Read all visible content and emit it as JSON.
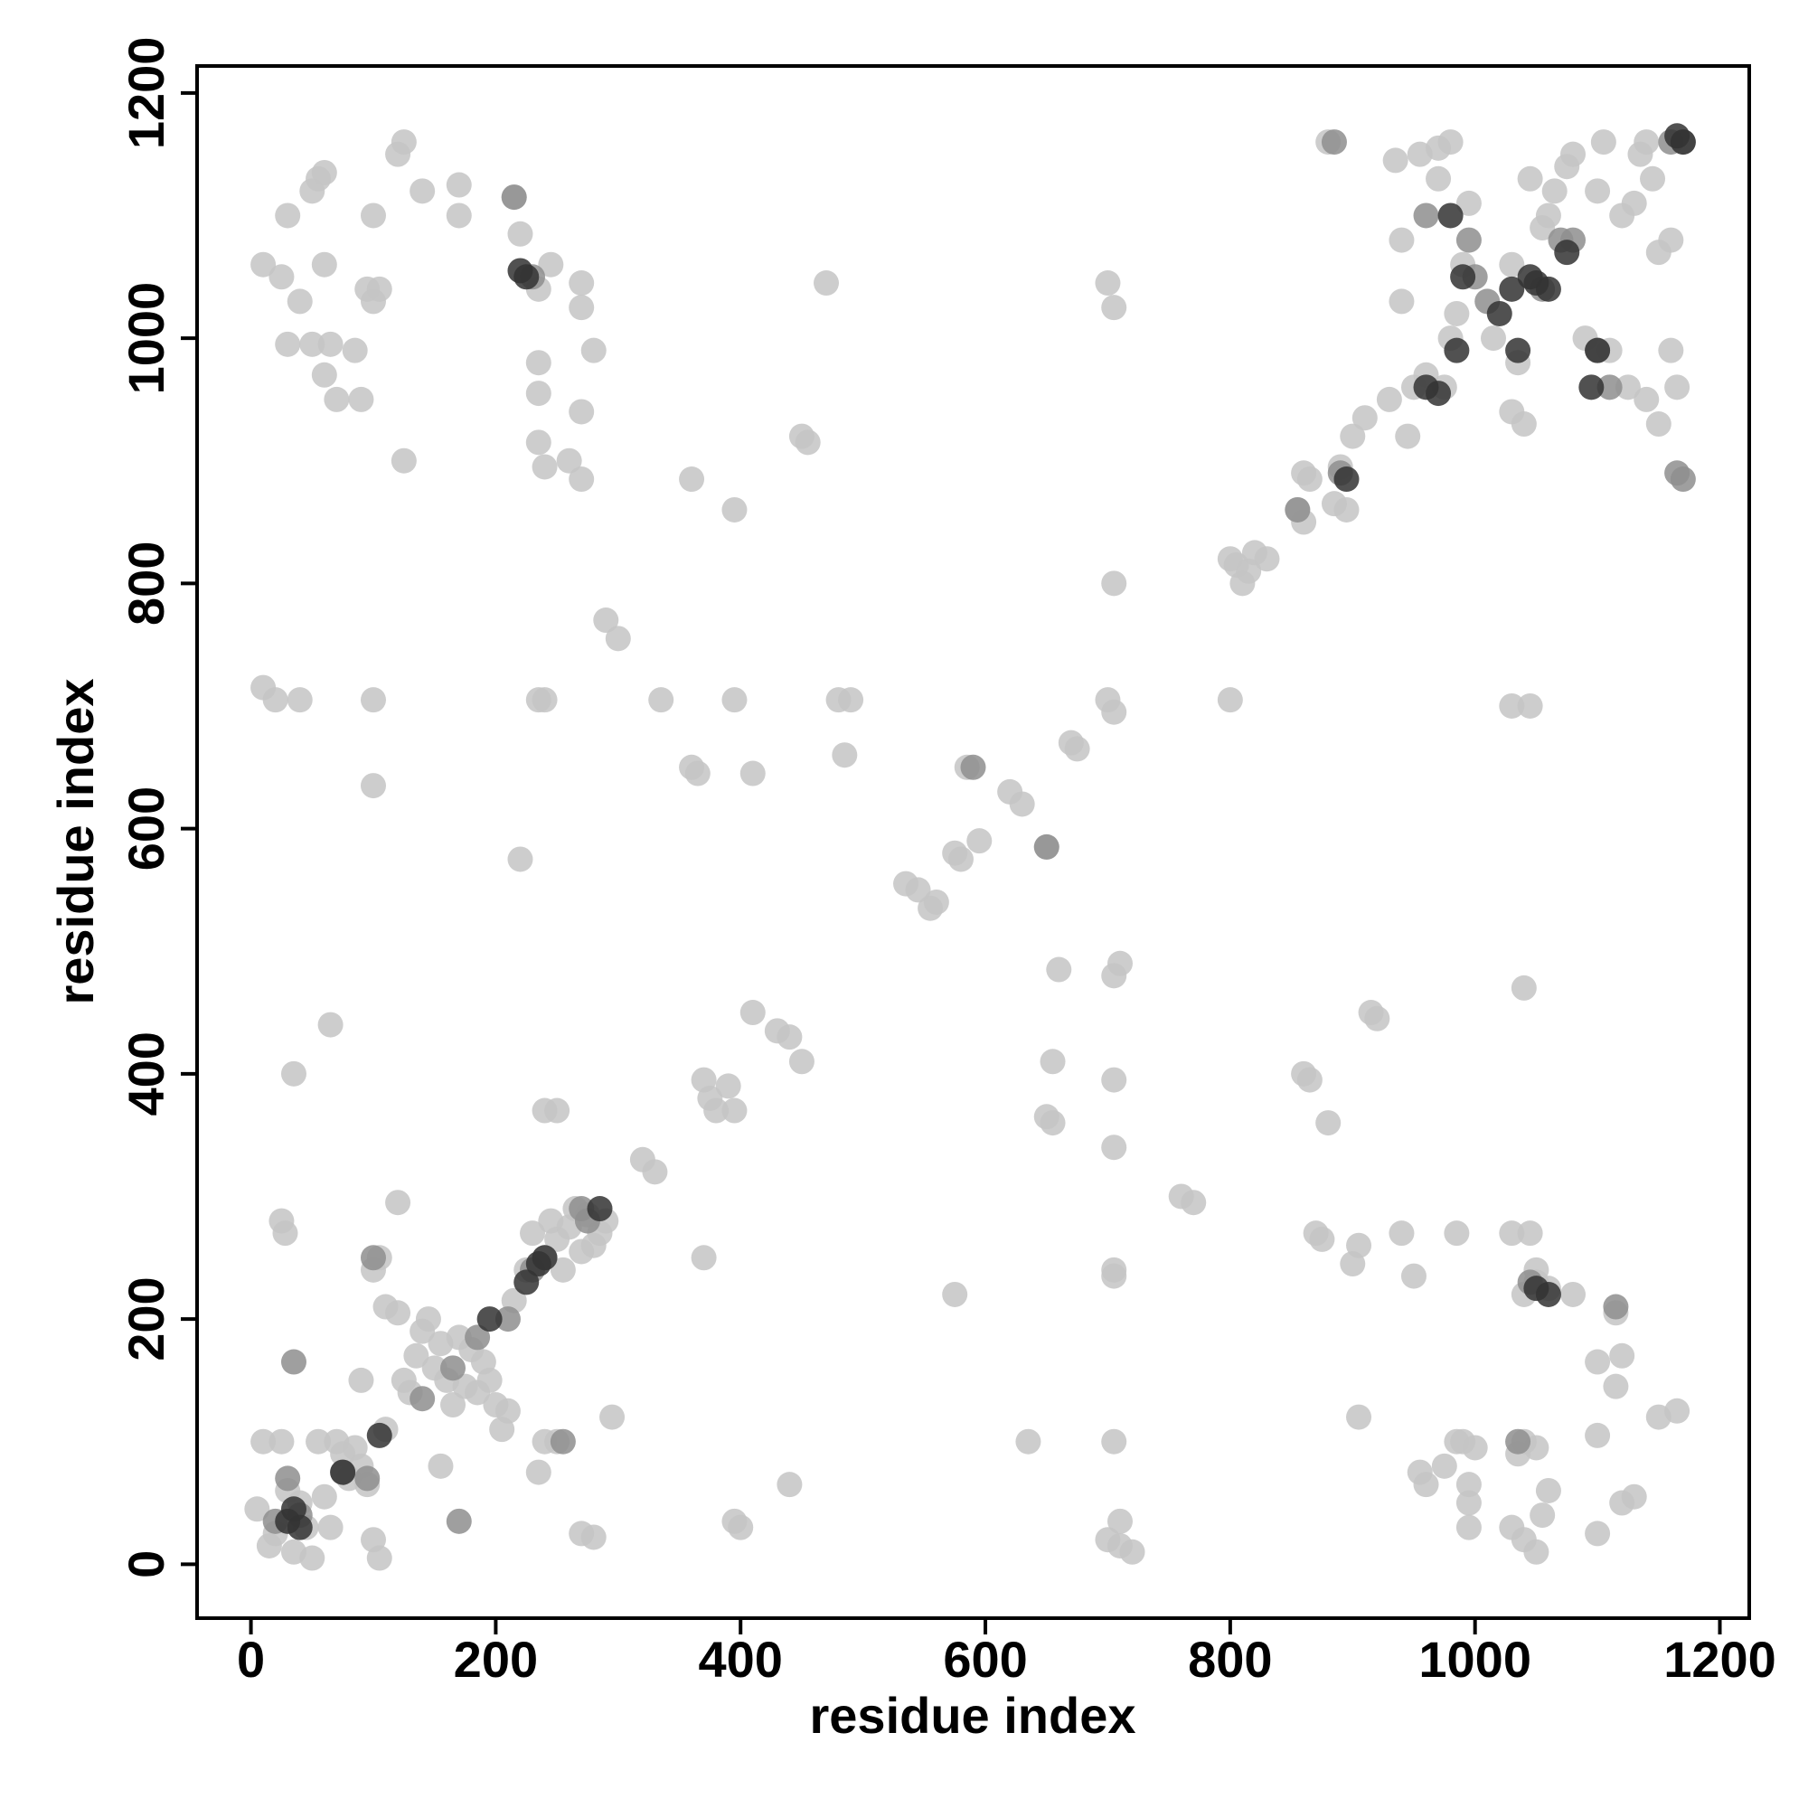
{
  "chart_data": {
    "type": "scatter",
    "x_label": "residue index",
    "y_label": "residue index",
    "xlim": [
      -44,
      1224
    ],
    "ylim": [
      -44,
      1222
    ],
    "xticks": [
      0,
      200,
      400,
      600,
      800,
      1000,
      1200
    ],
    "yticks": [
      0,
      200,
      400,
      600,
      800,
      1000,
      1200
    ],
    "series": [
      {
        "color": "#c4c4c4",
        "x": [
          5,
          10,
          15,
          20,
          25,
          30,
          35,
          40,
          45,
          50,
          55,
          60,
          65,
          70,
          75,
          80,
          85,
          90,
          95,
          100,
          105,
          110,
          100,
          105,
          110,
          120,
          125,
          130,
          135,
          140,
          145,
          150,
          155,
          160,
          165,
          170,
          175,
          180,
          185,
          190,
          195,
          200,
          205,
          210,
          215,
          225,
          230,
          240,
          245,
          250,
          255,
          260,
          265,
          270,
          275,
          280,
          285,
          290,
          120,
          90,
          25,
          28,
          240,
          250,
          235,
          270,
          280,
          295,
          155,
          35,
          65,
          100,
          40,
          10,
          20,
          100,
          85,
          90,
          70,
          60,
          65,
          50,
          30,
          40,
          25,
          10,
          60,
          100,
          95,
          105,
          30,
          50,
          55,
          60,
          100,
          140,
          170,
          170,
          120,
          125,
          125,
          215,
          220,
          235,
          245,
          270,
          270,
          235,
          235,
          235,
          240,
          260,
          270,
          270,
          280,
          220,
          235,
          240,
          240,
          250,
          290,
          300,
          320,
          330,
          335,
          360,
          365,
          360,
          370,
          370,
          375,
          380,
          390,
          395,
          395,
          400,
          395,
          395,
          410,
          410,
          430,
          440,
          440,
          450,
          450,
          455,
          470,
          480,
          485,
          490,
          535,
          545,
          555,
          560,
          575,
          580,
          585,
          595,
          575,
          620,
          630,
          635,
          650,
          655,
          650,
          655,
          660,
          670,
          675,
          700,
          705,
          700,
          705,
          705,
          710,
          705,
          705,
          705,
          705,
          705,
          705,
          710,
          700,
          710,
          720,
          760,
          770,
          800,
          800,
          805,
          810,
          815,
          820,
          830,
          855,
          860,
          860,
          865,
          860,
          865,
          870,
          875,
          880,
          880,
          885,
          890,
          895,
          900,
          905,
          905,
          900,
          910,
          915,
          920,
          930,
          935,
          940,
          940,
          945,
          950,
          955,
          960,
          940,
          950,
          955,
          960,
          970,
          970,
          975,
          980,
          985,
          990,
          995,
          985,
          985,
          995,
          995,
          995,
          1000,
          1015,
          1030,
          1035,
          1045,
          1055,
          1060,
          1065,
          1075,
          1080,
          1090,
          1100,
          1105,
          1120,
          1130,
          1135,
          1140,
          1145,
          1150,
          1160,
          1160,
          1165,
          1150,
          1110,
          1125,
          1140,
          1030,
          1040,
          1030,
          1045,
          1040,
          1030,
          1045,
          1050,
          1050,
          1060,
          1040,
          1080,
          1100,
          1120,
          1115,
          1115,
          1100,
          1100,
          1120,
          1130,
          1150,
          1165,
          1030,
          1040,
          1050,
          1055,
          1060,
          1050,
          1040,
          1035,
          990,
          975,
          980
        ],
        "y": [
          45,
          100,
          15,
          25,
          100,
          60,
          10,
          50,
          30,
          5,
          100,
          55,
          30,
          100,
          90,
          70,
          95,
          80,
          65,
          20,
          5,
          110,
          240,
          250,
          210,
          205,
          150,
          140,
          170,
          190,
          200,
          160,
          180,
          150,
          130,
          185,
          145,
          175,
          140,
          165,
          150,
          130,
          110,
          125,
          215,
          240,
          270,
          250,
          280,
          265,
          240,
          275,
          290,
          255,
          285,
          260,
          270,
          280,
          295,
          150,
          280,
          270,
          100,
          100,
          75,
          25,
          22,
          120,
          80,
          400,
          440,
          635,
          705,
          715,
          705,
          705,
          990,
          950,
          950,
          970,
          995,
          995,
          995,
          1030,
          1050,
          1060,
          1060,
          1030,
          1040,
          1040,
          1100,
          1120,
          1130,
          1135,
          1100,
          1120,
          1100,
          1125,
          1150,
          1160,
          900,
          1115,
          1085,
          1040,
          1060,
          1045,
          1025,
          980,
          955,
          915,
          895,
          900,
          885,
          940,
          990,
          575,
          705,
          705,
          370,
          370,
          770,
          755,
          330,
          320,
          705,
          650,
          645,
          885,
          250,
          395,
          380,
          370,
          390,
          370,
          35,
          30,
          705,
          860,
          645,
          450,
          435,
          430,
          65,
          410,
          920,
          915,
          1045,
          705,
          660,
          705,
          555,
          550,
          535,
          540,
          580,
          575,
          650,
          590,
          220,
          630,
          620,
          100,
          585,
          410,
          365,
          360,
          485,
          670,
          665,
          705,
          695,
          1045,
          1025,
          800,
          490,
          480,
          395,
          340,
          240,
          235,
          100,
          35,
          20,
          15,
          10,
          300,
          295,
          705,
          820,
          815,
          800,
          810,
          825,
          820,
          860,
          850,
          890,
          885,
          400,
          395,
          270,
          265,
          360,
          1160,
          865,
          895,
          860,
          245,
          260,
          120,
          920,
          935,
          450,
          445,
          950,
          1145,
          1080,
          1030,
          920,
          960,
          1150,
          970,
          270,
          235,
          75,
          65,
          1155,
          1130,
          960,
          1000,
          1020,
          1060,
          1110,
          270,
          100,
          65,
          50,
          30,
          95,
          1000,
          1060,
          980,
          1130,
          1090,
          1100,
          1120,
          1140,
          1150,
          1000,
          1120,
          1160,
          1100,
          1110,
          1150,
          1160,
          1130,
          1070,
          1080,
          990,
          960,
          930,
          990,
          960,
          950,
          940,
          930,
          700,
          700,
          470,
          270,
          270,
          240,
          230,
          225,
          220,
          220,
          165,
          170,
          145,
          205,
          105,
          25,
          50,
          55,
          120,
          125,
          30,
          20,
          10,
          40,
          60,
          95,
          100,
          90,
          100,
          80,
          1160
        ]
      },
      {
        "color": "#8e8e8e",
        "x": [
          20,
          40,
          30,
          75,
          95,
          170,
          35,
          100,
          140,
          165,
          185,
          210,
          230,
          255,
          270,
          275,
          230,
          215,
          995,
          1000,
          1010,
          1055,
          1070,
          1080,
          1100,
          1110,
          1160,
          1170,
          1165,
          1170,
          885,
          960,
          1045,
          1115,
          1035,
          590,
          650,
          855,
          890
        ],
        "y": [
          35,
          40,
          70,
          75,
          70,
          35,
          165,
          250,
          135,
          160,
          185,
          200,
          240,
          100,
          290,
          280,
          1050,
          1115,
          1080,
          1050,
          1030,
          1040,
          1080,
          1080,
          990,
          960,
          1160,
          1160,
          890,
          885,
          1160,
          1100,
          230,
          210,
          100,
          650,
          585,
          860,
          890
        ]
      },
      {
        "color": "#333333",
        "x": [
          30,
          40,
          35,
          75,
          105,
          195,
          225,
          235,
          240,
          285,
          220,
          225,
          960,
          970,
          985,
          990,
          1020,
          1030,
          1045,
          1050,
          1060,
          1075,
          1035,
          1095,
          1100,
          1165,
          1170,
          980,
          895,
          1050,
          1060
        ],
        "y": [
          35,
          30,
          45,
          75,
          105,
          200,
          230,
          245,
          250,
          290,
          1055,
          1050,
          960,
          955,
          990,
          1050,
          1020,
          1040,
          1050,
          1045,
          1040,
          1070,
          990,
          960,
          990,
          1165,
          1160,
          1100,
          885,
          225,
          220
        ]
      }
    ]
  }
}
